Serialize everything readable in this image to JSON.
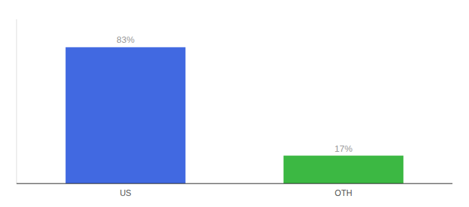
{
  "chart_data": {
    "type": "bar",
    "categories": [
      "US",
      "OTH"
    ],
    "values": [
      83,
      17
    ],
    "value_labels": [
      "83%",
      "17%"
    ],
    "colors": [
      "#4169E1",
      "#3CB843"
    ],
    "ylim": [
      0,
      100
    ],
    "data_labels": true,
    "tick_labels": "x",
    "grid": false
  }
}
